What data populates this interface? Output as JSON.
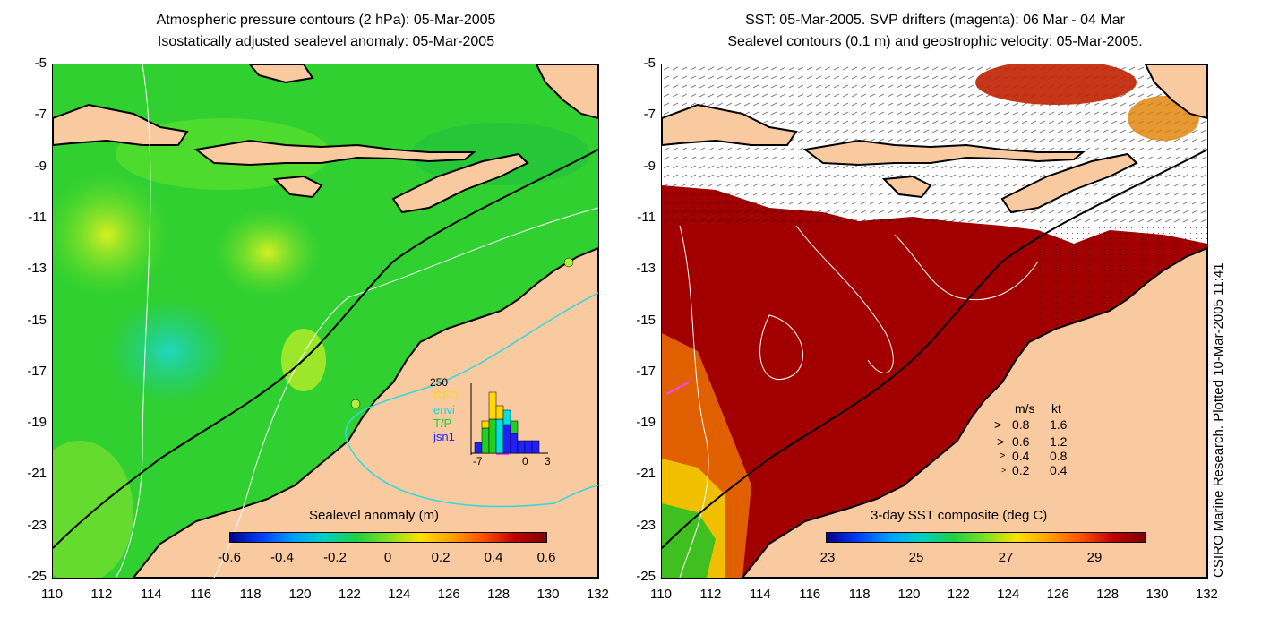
{
  "left": {
    "title1": "Atmospheric pressure contours (2 hPa): 05-Mar-2005",
    "title2": "Isostatically adjusted sealevel anomaly: 05-Mar-2005",
    "colorbar_title": "Sealevel anomaly (m)",
    "colorbar_ticks": [
      "-0.6",
      "-0.4",
      "-0.2",
      "0",
      "0.2",
      "0.4",
      "0.6"
    ],
    "inset": {
      "ymax": "250",
      "legend": [
        {
          "label": "GFO",
          "color": "#ffd800"
        },
        {
          "label": "envi",
          "color": "#00e0e0"
        },
        {
          "label": "T/P",
          "color": "#20d020"
        },
        {
          "label": "jsn1",
          "color": "#2020ff"
        }
      ],
      "xticks": [
        "-7",
        "0",
        "3"
      ]
    }
  },
  "right": {
    "title1": "SST: 05-Mar-2005. SVP drifters (magenta): 06 Mar - 04 Mar",
    "title2": "Sealevel contours (0.1 m) and geostrophic velocity: 05-Mar-2005.",
    "colorbar_title": "3-day SST composite (deg C)",
    "colorbar_ticks": [
      "23",
      "25",
      "27",
      "29"
    ],
    "velocity_legend": {
      "header_ms": "m/s",
      "header_kt": "kt",
      "rows": [
        {
          "ms": "0.8",
          "kt": "1.6"
        },
        {
          "ms": "0.6",
          "kt": "1.2"
        },
        {
          "ms": "0.4",
          "kt": "0.8"
        },
        {
          "ms": "0.2",
          "kt": "0.4"
        }
      ]
    }
  },
  "y_ticks": [
    "-5",
    "-7",
    "-9",
    "-11",
    "-13",
    "-15",
    "-17",
    "-19",
    "-21",
    "-23",
    "-25"
  ],
  "x_ticks": [
    "110",
    "112",
    "114",
    "116",
    "118",
    "120",
    "122",
    "124",
    "126",
    "128",
    "130",
    "132"
  ],
  "side_label": "CSIRO Marine Research. Plotted 10-Mar-2005 11:41",
  "colors": {
    "land": "#f9c9a0",
    "ocean_anomaly": "#2cd23c",
    "sst_warm": "#a00000"
  }
}
